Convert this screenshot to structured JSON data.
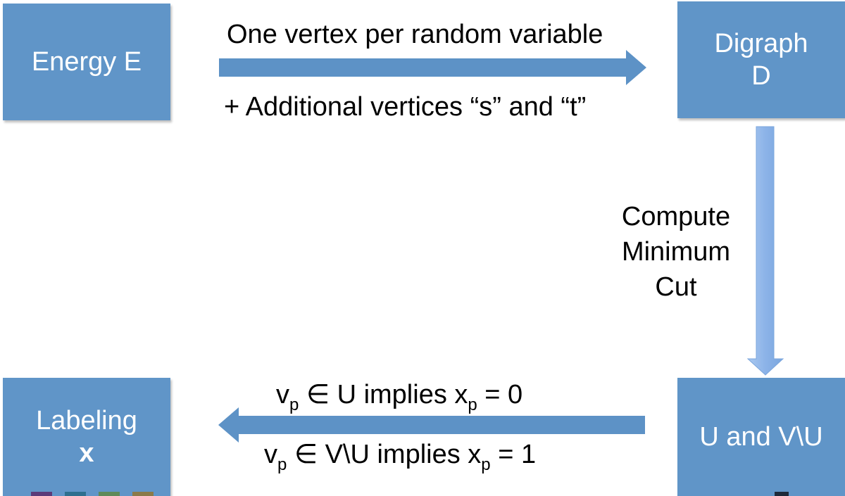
{
  "nodes": {
    "energy": {
      "line1": "Energy E"
    },
    "digraph": {
      "line1": "Digraph",
      "line2": "D"
    },
    "labeling": {
      "line1": "Labeling",
      "line2": "x"
    },
    "cut_sets": {
      "line1": "U and V\\U"
    }
  },
  "edges": {
    "energy_to_digraph": {
      "label_above": "One vertex per random variable",
      "label_below": "+ Additional vertices “s” and “t”"
    },
    "digraph_to_cut": {
      "label_lines": [
        "Compute",
        "Minimum",
        "Cut"
      ]
    },
    "cut_to_labeling": {
      "line1": {
        "v": "v",
        "v_sub": "p",
        "rel": " ∈ U implies x",
        "x_sub": "p",
        "eq": " = 0"
      },
      "line2": {
        "v": "v",
        "v_sub": "p",
        "rel": " ∈ V\\U implies x",
        "x_sub": "p",
        "eq": " = 1"
      }
    }
  },
  "colors": {
    "box_fill": "#6095c8",
    "arrow_fill": "#5d92c6",
    "vertical_arrow_fill": "#8cb3e8",
    "text_on_box": "#ffffff",
    "text": "#000000"
  }
}
